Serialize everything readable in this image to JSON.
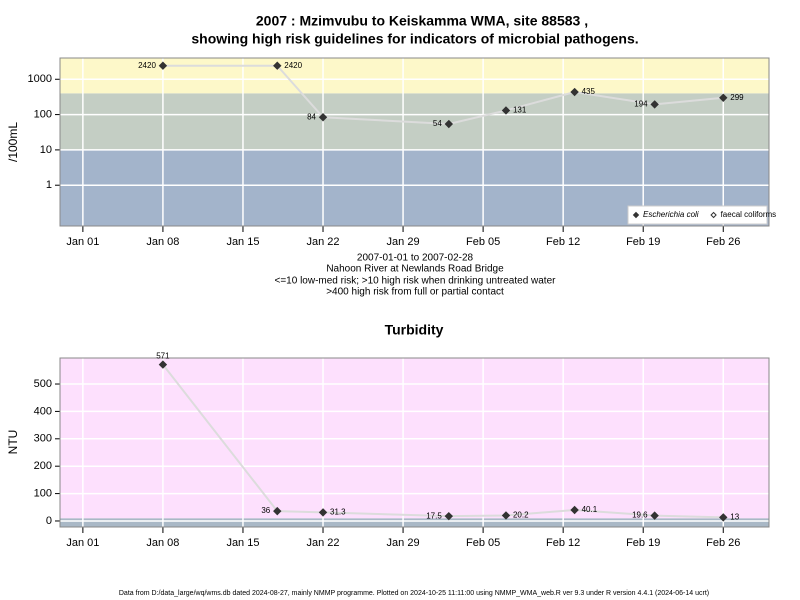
{
  "chart_data": [
    {
      "type": "line",
      "title": "2007 : Mzimvubu to Keiskamma WMA, site 88583 ,",
      "subtitle": "showing high risk guidelines for indicators of microbial pathogens.",
      "y_label": "/100mL",
      "log_y": true,
      "grid": true,
      "legend": "bottom-right",
      "annotations": [
        "2007-01-01 to 2007-02-28",
        "Nahoon River at Newlands Road Bridge",
        "<=10 low-med risk; >10 high risk when drinking untreated water",
        ">400 high risk from full or partial contact"
      ],
      "x": [
        "2007-01-08",
        "2007-01-18",
        "2007-01-22",
        "2007-02-02",
        "2007-02-07",
        "2007-02-13",
        "2007-02-20",
        "2007-02-26"
      ],
      "series": [
        {
          "name": "Escherichia coli",
          "color": "#333333",
          "line_color": "#dcdcdc",
          "marker": "filled",
          "values": [
            2420,
            2420,
            84,
            54,
            131,
            435,
            194,
            299
          ]
        },
        {
          "name": "faecal coliforms",
          "color": "#333333",
          "line_color": "#dcdcdc",
          "marker": "open",
          "values": [
            null,
            null,
            null,
            null,
            null,
            null,
            null,
            null
          ]
        }
      ],
      "bands": [
        {
          "to": 10,
          "color": "#a3b4cb"
        },
        {
          "from": 10,
          "to": 400,
          "color": "#c4cec4"
        },
        {
          "from": 400,
          "color": "#fdf8c9"
        }
      ],
      "xlim": [
        "2006-12-30",
        "2007-03-02"
      ],
      "xticks": [
        {
          "value": "2007-01-01",
          "label": "Jan 01"
        },
        {
          "value": "2007-01-08",
          "label": "Jan 08"
        },
        {
          "value": "2007-01-15",
          "label": "Jan 15"
        },
        {
          "value": "2007-01-22",
          "label": "Jan 22"
        },
        {
          "value": "2007-01-29",
          "label": "Jan 29"
        },
        {
          "value": "2007-02-05",
          "label": "Feb 05"
        },
        {
          "value": "2007-02-12",
          "label": "Feb 12"
        },
        {
          "value": "2007-02-19",
          "label": "Feb 19"
        },
        {
          "value": "2007-02-26",
          "label": "Feb 26"
        }
      ],
      "ylim": [
        0.07,
        4000
      ],
      "yticks": [
        1,
        10,
        100,
        1000
      ]
    },
    {
      "type": "line",
      "title": "Turbidity",
      "y_label": "NTU",
      "log_y": false,
      "grid": true,
      "x": [
        "2007-01-08",
        "2007-01-18",
        "2007-01-22",
        "2007-02-02",
        "2007-02-07",
        "2007-02-13",
        "2007-02-20",
        "2007-02-26"
      ],
      "series": [
        {
          "name": "Turbidity",
          "color": "#333333",
          "line_color": "#dcdcdc",
          "marker": "filled",
          "values": [
            571,
            36,
            31.3,
            17.5,
            20.2,
            40.1,
            19.6,
            13
          ]
        }
      ],
      "bands": [
        {
          "to": 10,
          "color": "#a9b8c6"
        },
        {
          "from": 10,
          "color": "#fde0fd"
        }
      ],
      "xlim": [
        "2006-12-30",
        "2007-03-02"
      ],
      "xticks": [
        {
          "value": "2007-01-01",
          "label": "Jan 01"
        },
        {
          "value": "2007-01-08",
          "label": "Jan 08"
        },
        {
          "value": "2007-01-15",
          "label": "Jan 15"
        },
        {
          "value": "2007-01-22",
          "label": "Jan 22"
        },
        {
          "value": "2007-01-29",
          "label": "Jan 29"
        },
        {
          "value": "2007-02-05",
          "label": "Feb 05"
        },
        {
          "value": "2007-02-12",
          "label": "Feb 12"
        },
        {
          "value": "2007-02-19",
          "label": "Feb 19"
        },
        {
          "value": "2007-02-26",
          "label": "Feb 26"
        }
      ],
      "ylim": [
        -22,
        595
      ],
      "yticks": [
        0,
        100,
        200,
        300,
        400,
        500
      ]
    }
  ],
  "footer": "Data from D:/data_large/wq/wms.db dated 2024-08-27, mainly NMMP programme. Plotted on 2024-10-25 11:11:00 using NMMP_WMA_web.R ver 9.3 under R version 4.4.1 (2024-06-14 ucrt)"
}
